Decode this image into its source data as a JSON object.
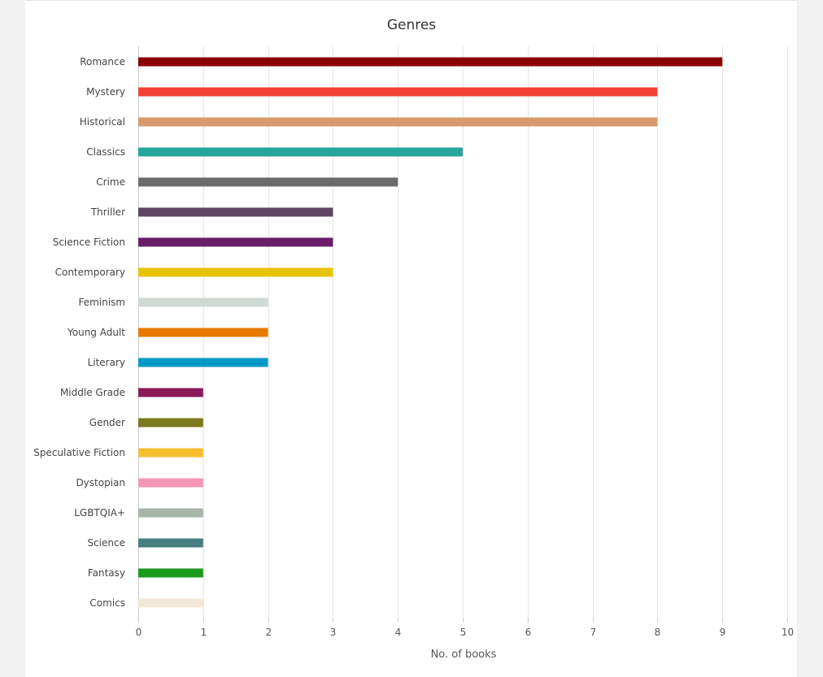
{
  "chart_data": {
    "type": "bar",
    "orientation": "horizontal",
    "title": "Genres",
    "xlabel": "No. of books",
    "ylabel": "",
    "xlim": [
      0,
      10
    ],
    "xticks": [
      "0",
      "1",
      "2",
      "3",
      "4",
      "5",
      "6",
      "7",
      "8",
      "9",
      "10"
    ],
    "grid": true,
    "categories": [
      "Romance",
      "Mystery",
      "Historical",
      "Classics",
      "Crime",
      "Thriller",
      "Science Fiction",
      "Contemporary",
      "Feminism",
      "Young Adult",
      "Literary",
      "Middle Grade",
      "Gender",
      "Speculative Fiction",
      "Dystopian",
      "LGBTQIA+",
      "Science",
      "Fantasy",
      "Comics"
    ],
    "values": [
      9,
      8,
      8,
      5,
      4,
      3,
      3,
      3,
      2,
      2,
      2,
      1,
      1,
      1,
      1,
      1,
      1,
      1,
      1
    ],
    "colors": [
      "#8b0000",
      "#f44336",
      "#d89a6a",
      "#26a69a",
      "#6b6b6b",
      "#5d4563",
      "#6a1b6a",
      "#e6c300",
      "#d0d8d4",
      "#e87a00",
      "#0099c6",
      "#8b1a5a",
      "#7b7a1e",
      "#f5bd30",
      "#f596b4",
      "#a8b5a8",
      "#477e80",
      "#1a9a1a",
      "#f1e8d5"
    ]
  }
}
